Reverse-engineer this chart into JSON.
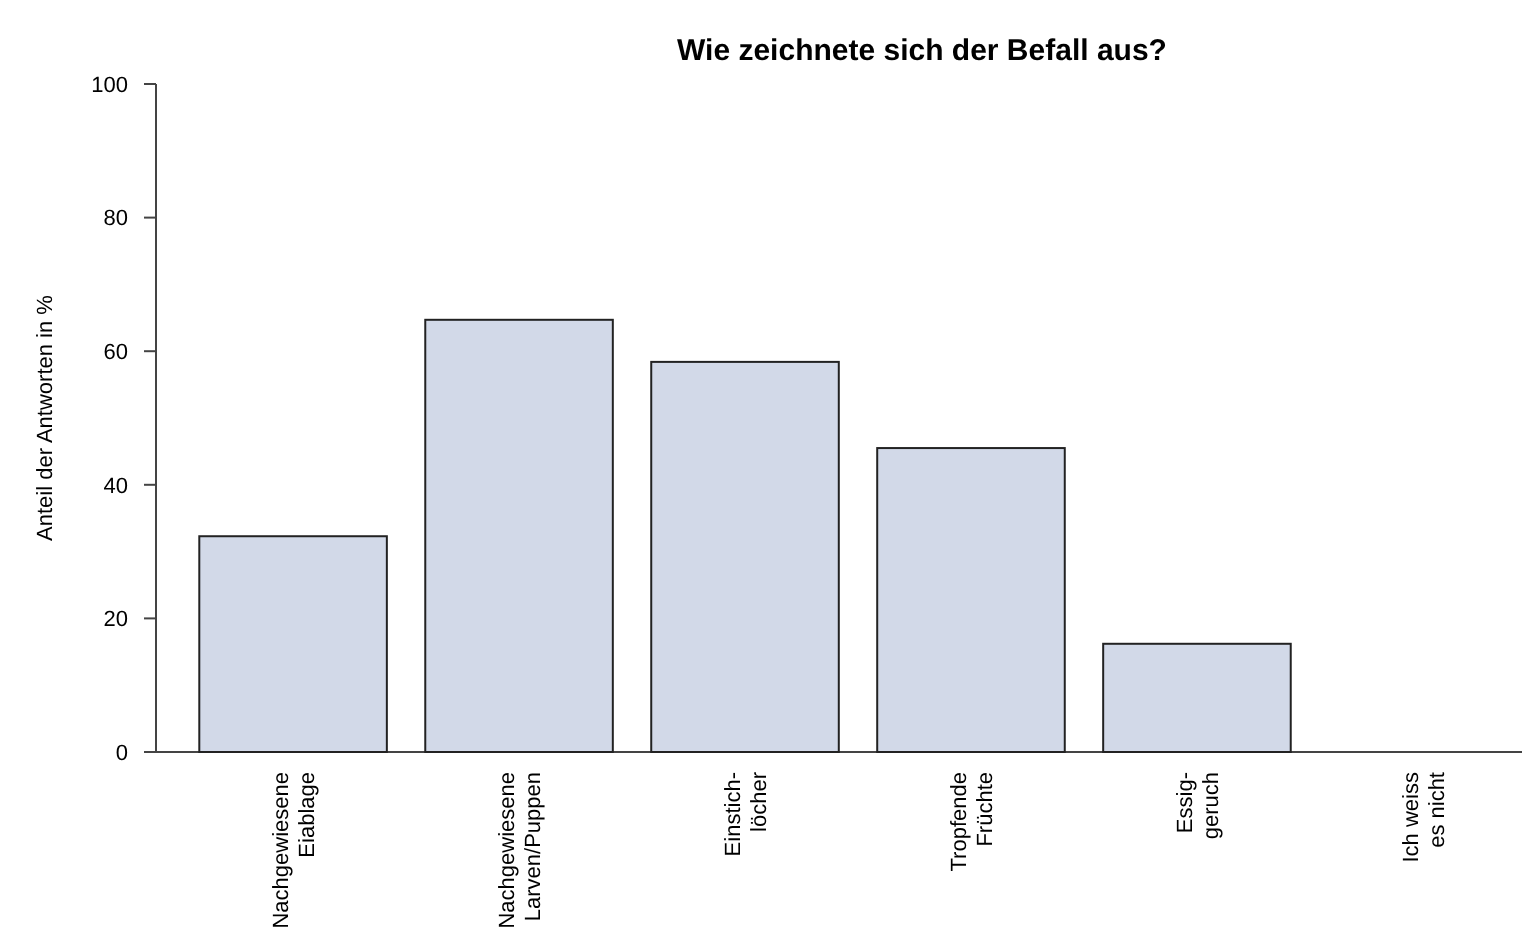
{
  "chart_data": {
    "type": "bar",
    "title": "Wie zeichnete sich der Befall aus?",
    "ylabel": "Anteil der Antworten in %",
    "categories": [
      "Nachgewiesene\nEiablage",
      "Nachgewiesene\nLarven/Puppen",
      "Einstich-\nlöcher",
      "Tropfende\nFrüchte",
      "Essig-\ngeruch",
      "Ich weiss\nes nicht"
    ],
    "values": [
      32.3,
      64.7,
      58.4,
      45.5,
      16.2,
      0
    ],
    "color": "#d2d9e8",
    "ylim": [
      0,
      100
    ],
    "yticks": [
      0,
      20,
      40,
      60,
      80,
      100
    ],
    "grid": false
  }
}
